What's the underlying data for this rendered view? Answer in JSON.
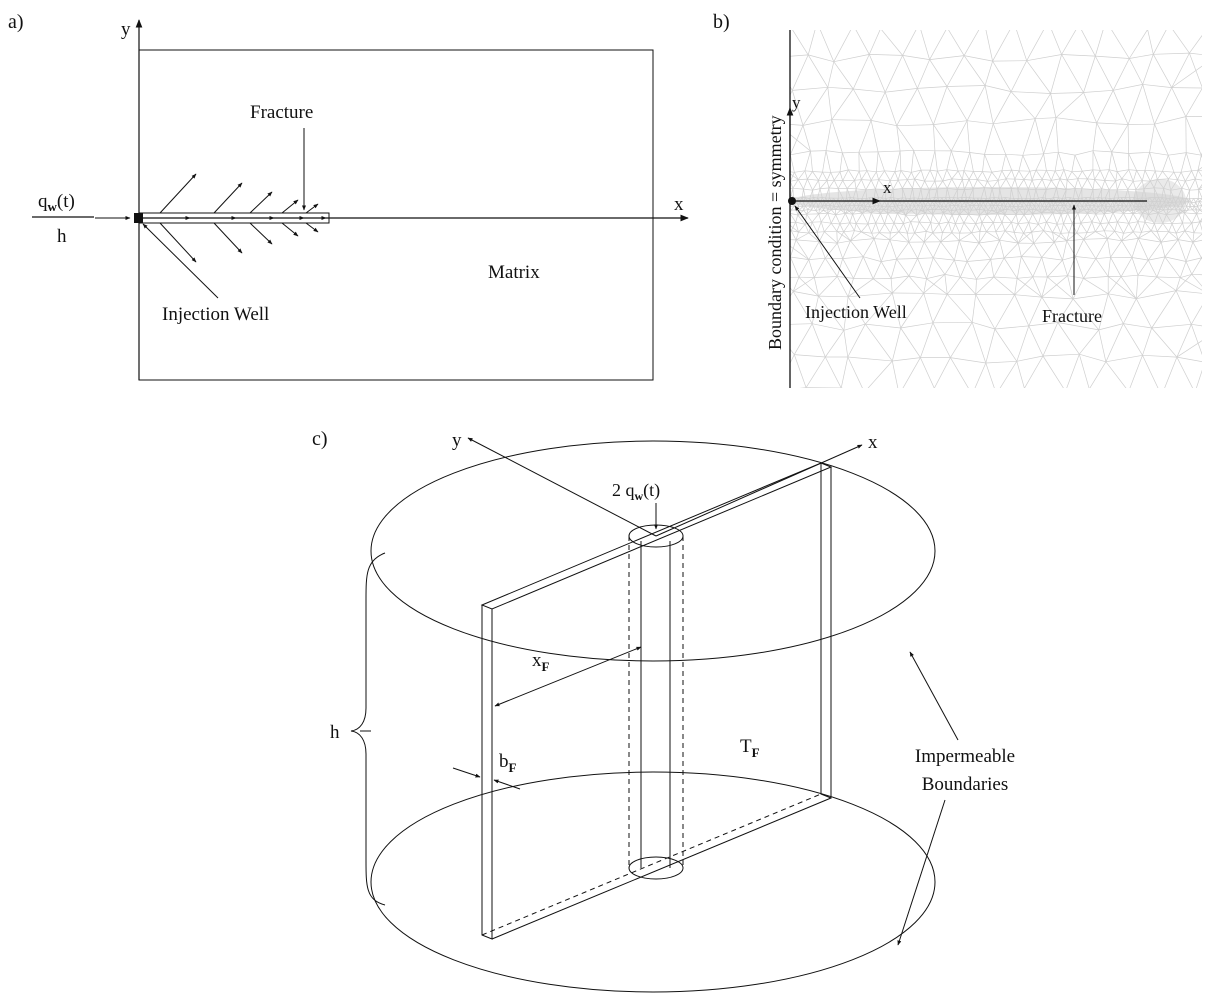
{
  "panel_a": {
    "label": "a)",
    "axis_y": "y",
    "axis_x": "x",
    "flux_numerator": "q",
    "flux_numerator_sub": "w",
    "flux_numerator_arg": "(t)",
    "flux_denominator": "h",
    "fracture_label": "Fracture",
    "matrix_label": "Matrix",
    "well_label": "Injection Well"
  },
  "panel_b": {
    "label": "b)",
    "axis_y": "y",
    "axis_x": "x",
    "boundary_label": "Boundary condition = symmetry",
    "well_label": "Injection Well",
    "fracture_label": "Fracture"
  },
  "panel_c": {
    "label": "c)",
    "axis_y": "y",
    "axis_x": "x",
    "flow_prefix": "2 q",
    "flow_sub": "w",
    "flow_arg": "(t)",
    "xf_main": "x",
    "xf_sub": "F",
    "tf_main": "T",
    "tf_sub": "F",
    "bf_main": "b",
    "bf_sub": "F",
    "height_label": "h",
    "boundary_line1": "Impermeable",
    "boundary_line2": "Boundaries"
  }
}
